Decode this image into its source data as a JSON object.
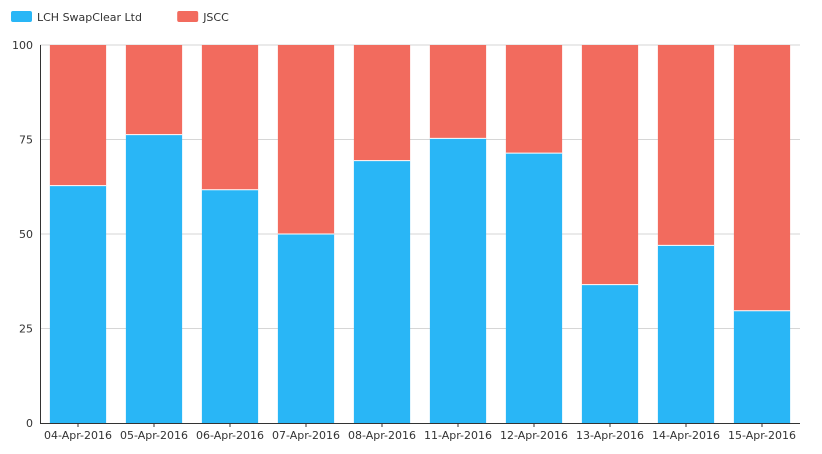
{
  "chart_data": {
    "type": "bar",
    "stacked": true,
    "categories": [
      "04-Apr-2016",
      "05-Apr-2016",
      "06-Apr-2016",
      "07-Apr-2016",
      "08-Apr-2016",
      "11-Apr-2016",
      "12-Apr-2016",
      "13-Apr-2016",
      "14-Apr-2016",
      "15-Apr-2016"
    ],
    "series": [
      {
        "name": "LCH SwapClear Ltd",
        "color": "#29b6f6",
        "values": [
          62.8,
          76.3,
          61.7,
          50.0,
          69.4,
          75.3,
          71.4,
          36.6,
          47.0,
          29.7
        ]
      },
      {
        "name": "JSCC",
        "color": "#f26b5e",
        "values": [
          37.2,
          23.7,
          38.3,
          50.0,
          30.6,
          24.7,
          28.6,
          63.4,
          53.0,
          70.3
        ]
      }
    ],
    "ylim": [
      0,
      100
    ],
    "yticks": [
      0,
      25,
      50,
      75,
      100
    ],
    "grid": true,
    "legend_position": "top-left",
    "title": "",
    "xlabel": "",
    "ylabel": ""
  }
}
